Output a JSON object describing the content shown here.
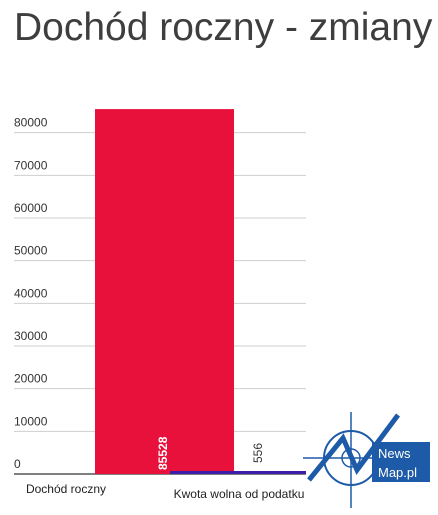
{
  "chart_data": {
    "type": "bar",
    "title": "Dochód roczny - zmiany",
    "categories": [
      "Dochód roczny",
      "Kwota wolna od podatku"
    ],
    "values": [
      85528,
      556
    ],
    "colors": [
      "#e8113b",
      "#3d1ea8"
    ],
    "yticks": [
      0,
      10000,
      20000,
      30000,
      40000,
      50000,
      60000,
      70000,
      80000
    ],
    "ylim": [
      0,
      90000
    ],
    "grid": true,
    "xlabel": "",
    "ylabel": ""
  },
  "logo": {
    "line1": "News",
    "line2": "Map.pl"
  }
}
